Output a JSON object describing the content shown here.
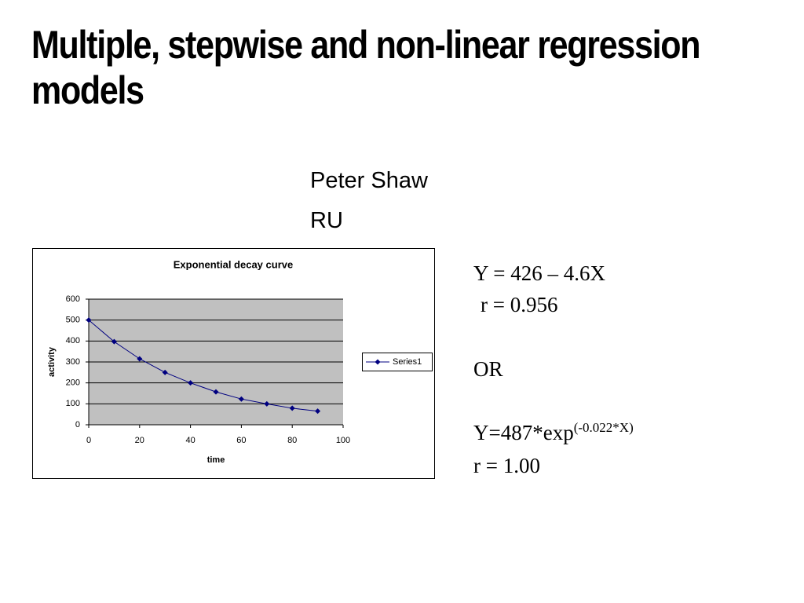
{
  "header": {
    "title": "Multiple, stepwise and non-linear regression models",
    "author": "Peter Shaw",
    "affiliation": "RU"
  },
  "linear_model": {
    "equation": "Y = 426 – 4.6X",
    "r": "r = 0.956"
  },
  "separator": "OR",
  "exponential_model": {
    "equation": "Y=487*exp",
    "exponent": "(-0.022*X)",
    "r": "r = 1.00"
  },
  "chart_data": {
    "type": "line",
    "title": "Exponential decay curve",
    "xlabel": "time",
    "ylabel": "activity",
    "x": [
      0,
      10,
      20,
      30,
      40,
      50,
      60,
      70,
      80,
      90
    ],
    "series": [
      {
        "name": "Series1",
        "color": "#000080",
        "values": [
          500,
          397,
          315,
          250,
          200,
          157,
          123,
          100,
          79,
          65
        ]
      }
    ],
    "xlim": [
      0,
      100
    ],
    "xticks": [
      0,
      20,
      40,
      60,
      80,
      100
    ],
    "ylim": [
      0,
      600
    ],
    "yticks": [
      0,
      100,
      200,
      300,
      400,
      500,
      600
    ],
    "grid": true,
    "plot_background": "#c0c0c0",
    "legend": "right"
  }
}
